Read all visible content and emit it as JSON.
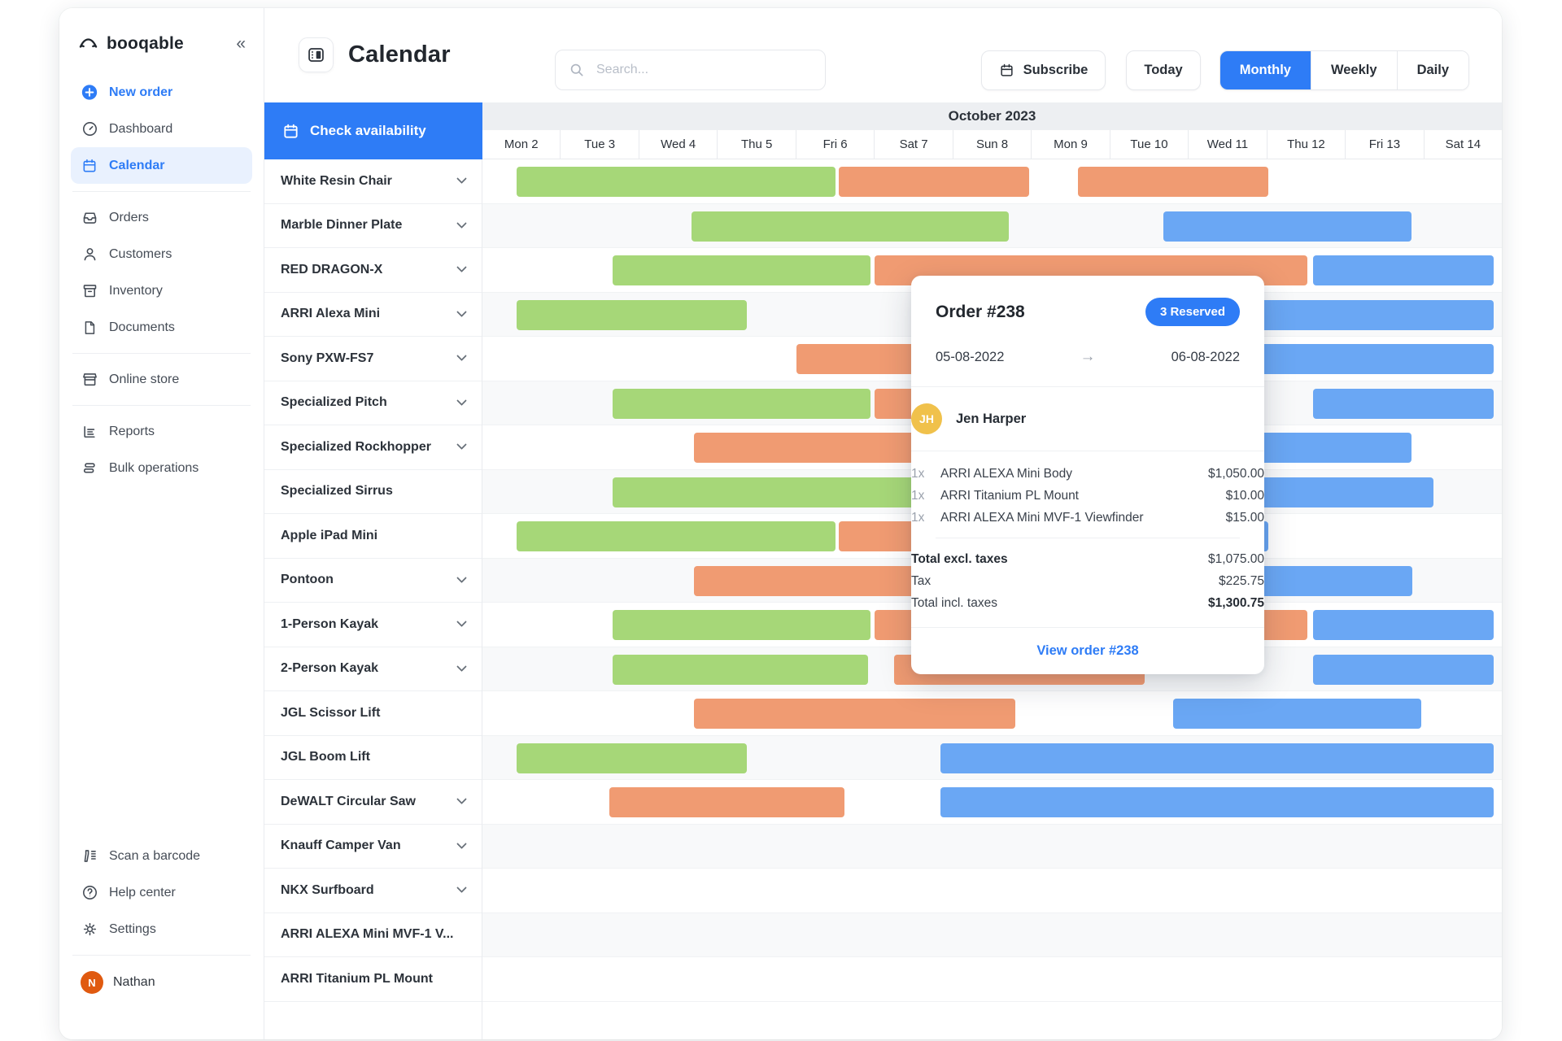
{
  "colors": {
    "green": "#a6d778",
    "orange": "#f09b72",
    "blue": "#6aa7f4",
    "accent": "#2e7cf6"
  },
  "sidebar": {
    "logo_text": "booqable",
    "logo_icon": "booqable-hat",
    "collapse_icon": "«",
    "nav": [
      {
        "label": "New order",
        "icon": "plus-circle",
        "style": "accent"
      },
      {
        "label": "Dashboard",
        "icon": "dashboard"
      },
      {
        "label": "Calendar",
        "icon": "calendar",
        "active": true
      },
      {
        "divider": true
      },
      {
        "label": "Orders",
        "icon": "orders"
      },
      {
        "label": "Customers",
        "icon": "customers"
      },
      {
        "label": "Inventory",
        "icon": "inventory"
      },
      {
        "label": "Documents",
        "icon": "documents"
      },
      {
        "divider": true
      },
      {
        "label": "Online store",
        "icon": "store"
      },
      {
        "divider": true
      },
      {
        "label": "Reports",
        "icon": "reports"
      },
      {
        "label": "Bulk operations",
        "icon": "bulk"
      }
    ],
    "bottom_nav": [
      {
        "label": "Scan a barcode",
        "icon": "scanner"
      },
      {
        "label": "Help center",
        "icon": "help"
      },
      {
        "label": "Settings",
        "icon": "gear"
      }
    ],
    "user": {
      "name": "Nathan",
      "initial": "N"
    }
  },
  "topbar": {
    "title": "Calendar",
    "title_icon": "layout",
    "search_placeholder": "Search...",
    "subscribe_label": "Subscribe",
    "today_label": "Today",
    "views": [
      "Monthly",
      "Weekly",
      "Daily"
    ],
    "active_view": "Monthly"
  },
  "calendar": {
    "check_availability_label": "Check availability",
    "month_title": "October 2023",
    "days": [
      "Mon 2",
      "Tue 3",
      "Wed 4",
      "Thu 5",
      "Fri 6",
      "Sat 7",
      "Sun 8",
      "Mon 9",
      "Tue 10",
      "Wed 11",
      "Thu 12",
      "Fri 13",
      "Sat 14"
    ],
    "products": [
      {
        "name": "White Resin Chair",
        "expandable": true,
        "bars": [
          {
            "c": "green",
            "s": 0.44,
            "e": 4.5
          },
          {
            "c": "orange",
            "s": 4.54,
            "e": 6.97
          },
          {
            "c": "orange",
            "s": 7.59,
            "e": 10.02
          }
        ]
      },
      {
        "name": "Marble Dinner Plate",
        "expandable": true,
        "bars": [
          {
            "c": "green",
            "s": 2.67,
            "e": 6.71
          },
          {
            "c": "blue",
            "s": 8.68,
            "e": 11.85
          }
        ]
      },
      {
        "name": "RED DRAGON-X",
        "expandable": true,
        "bars": [
          {
            "c": "green",
            "s": 1.66,
            "e": 4.95
          },
          {
            "c": "orange",
            "s": 5.0,
            "e": 10.52
          },
          {
            "c": "blue",
            "s": 10.59,
            "e": 12.9
          }
        ]
      },
      {
        "name": "ARRI Alexa Mini",
        "expandable": true,
        "bars": [
          {
            "c": "green",
            "s": 0.44,
            "e": 3.37
          },
          {
            "c": "blue",
            "s": 8.7,
            "e": 12.9
          }
        ]
      },
      {
        "name": "Sony PXW-FS7",
        "expandable": true,
        "bars": [
          {
            "c": "orange",
            "s": 4.0,
            "e": 8.45
          },
          {
            "c": "blue",
            "s": 8.7,
            "e": 12.9
          }
        ]
      },
      {
        "name": "Specialized Pitch",
        "expandable": true,
        "bars": [
          {
            "c": "green",
            "s": 1.66,
            "e": 4.95
          },
          {
            "c": "orange",
            "s": 5.0,
            "e": 8.45
          },
          {
            "c": "blue",
            "s": 10.59,
            "e": 12.9
          }
        ]
      },
      {
        "name": "Specialized Rockhopper",
        "expandable": true,
        "bars": [
          {
            "c": "orange",
            "s": 2.7,
            "e": 8.45
          },
          {
            "c": "blue",
            "s": 8.7,
            "e": 11.85
          }
        ]
      },
      {
        "name": "Specialized Sirrus",
        "expandable": false,
        "bars": [
          {
            "c": "green",
            "s": 1.66,
            "e": 6.2
          },
          {
            "c": "blue",
            "s": 8.7,
            "e": 12.13
          }
        ]
      },
      {
        "name": "Apple iPad Mini",
        "expandable": false,
        "bars": [
          {
            "c": "green",
            "s": 0.44,
            "e": 4.5
          },
          {
            "c": "orange",
            "s": 4.54,
            "e": 6.97
          },
          {
            "c": "blue",
            "s": 8.7,
            "e": 10.02
          }
        ]
      },
      {
        "name": "Pontoon",
        "expandable": true,
        "bars": [
          {
            "c": "orange",
            "s": 2.7,
            "e": 6.97
          },
          {
            "c": "blue",
            "s": 8.7,
            "e": 11.86
          }
        ]
      },
      {
        "name": "1-Person Kayak",
        "expandable": true,
        "bars": [
          {
            "c": "green",
            "s": 1.66,
            "e": 4.95
          },
          {
            "c": "orange",
            "s": 5.0,
            "e": 10.52
          },
          {
            "c": "blue",
            "s": 10.59,
            "e": 12.9
          }
        ]
      },
      {
        "name": "2-Person Kayak",
        "expandable": true,
        "bars": [
          {
            "c": "green",
            "s": 1.66,
            "e": 4.92
          },
          {
            "c": "orange",
            "s": 5.25,
            "e": 8.45
          },
          {
            "c": "blue",
            "s": 10.59,
            "e": 12.9
          }
        ]
      },
      {
        "name": "JGL Scissor Lift",
        "expandable": false,
        "bars": [
          {
            "c": "orange",
            "s": 2.7,
            "e": 6.8
          },
          {
            "c": "blue",
            "s": 8.81,
            "e": 11.97
          }
        ]
      },
      {
        "name": "JGL Boom Lift",
        "expandable": false,
        "bars": [
          {
            "c": "green",
            "s": 0.44,
            "e": 3.37
          },
          {
            "c": "blue",
            "s": 5.84,
            "e": 12.9
          }
        ]
      },
      {
        "name": "DeWALT Circular Saw",
        "expandable": true,
        "bars": [
          {
            "c": "orange",
            "s": 1.62,
            "e": 4.62
          },
          {
            "c": "blue",
            "s": 5.84,
            "e": 12.9
          }
        ]
      },
      {
        "name": "Knauff Camper Van",
        "expandable": true,
        "bars": []
      },
      {
        "name": "NKX Surfboard",
        "expandable": true,
        "bars": []
      },
      {
        "name": "ARRI ALEXA Mini MVF-1 V...",
        "expandable": false,
        "bars": []
      },
      {
        "name": "ARRI Titanium PL Mount",
        "expandable": false,
        "bars": []
      }
    ]
  },
  "popup": {
    "title": "Order #238",
    "badge": "3 Reserved",
    "date_from": "05-08-2022",
    "arrow": "→",
    "date_to": "06-08-2022",
    "customer": {
      "initials": "JH",
      "name": "Jen Harper"
    },
    "items": [
      {
        "qty": "1x",
        "name": "ARRI ALEXA Mini Body",
        "price": "$1,050.00"
      },
      {
        "qty": "1x",
        "name": "ARRI Titanium PL Mount",
        "price": "$10.00"
      },
      {
        "qty": "1x",
        "name": "ARRI ALEXA Mini MVF-1 Viewfinder",
        "price": "$15.00"
      }
    ],
    "totals": [
      {
        "label": "Total excl. taxes",
        "value": "$1,075.00",
        "label_bold": true
      },
      {
        "label": "Tax",
        "value": "$225.75"
      },
      {
        "label": "Total incl. taxes",
        "value": "$1,300.75",
        "value_bold": true
      }
    ],
    "link": "View order #238"
  }
}
